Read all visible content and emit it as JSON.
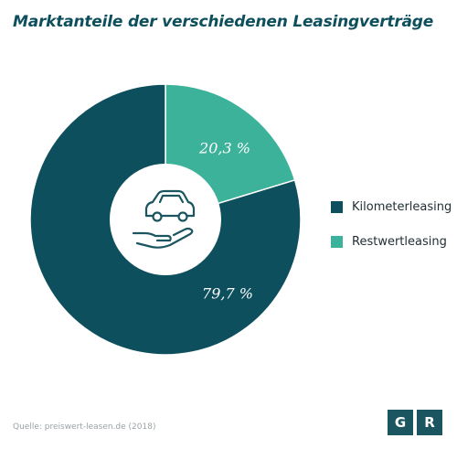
{
  "colors": {
    "title": "#0d4f5c",
    "kilometer": "#0d4f5c",
    "restwert": "#3cb29a",
    "logo": "#1b5560"
  },
  "chart_data": {
    "type": "pie",
    "title": "Marktanteile der verschiedenen Leasingverträge",
    "categories": [
      "Kilometerleasing",
      "Restwertleasing"
    ],
    "values": [
      79.7,
      20.3
    ],
    "value_labels": [
      "79,7 %",
      "20,3 %"
    ],
    "colors": [
      "#0d4f5c",
      "#3cb29a"
    ],
    "legend_position": "right",
    "center_icon": "car-in-hand-icon"
  },
  "source": "Quelle: preiswert-leasen.de (2018)",
  "logo": {
    "letters": [
      "G",
      "R"
    ]
  }
}
